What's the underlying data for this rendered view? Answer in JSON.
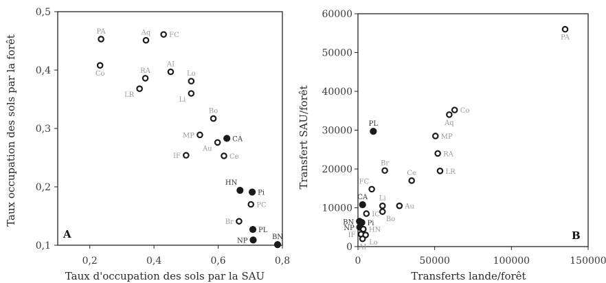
{
  "chart_data": [
    {
      "type": "scatter",
      "panel_label": "A",
      "xlabel": "Taux d'occupation des sols par la SAU",
      "ylabel": "Taux occupation des sols par la forêt",
      "xlim": [
        0.1,
        0.8
      ],
      "ylim": [
        0.1,
        0.5
      ],
      "xticks": [
        "0,2",
        "0,4",
        "0,6",
        "0,8"
      ],
      "yticks": [
        "0,5",
        "0,4",
        "0,3",
        "0,2",
        "0,1"
      ],
      "xtick_values": [
        0.2,
        0.4,
        0.6,
        0.8
      ],
      "ytick_values": [
        0.5,
        0.4,
        0.3,
        0.2,
        0.1
      ],
      "points": [
        {
          "label": "PA",
          "x": 0.235,
          "y": 0.453,
          "filled": false,
          "label_pos": "above"
        },
        {
          "label": "Co",
          "x": 0.232,
          "y": 0.408,
          "filled": false,
          "label_pos": "below"
        },
        {
          "label": "Aq",
          "x": 0.375,
          "y": 0.451,
          "filled": false,
          "label_pos": "above"
        },
        {
          "label": "FC",
          "x": 0.43,
          "y": 0.461,
          "filled": false,
          "label_pos": "right"
        },
        {
          "label": "RA",
          "x": 0.373,
          "y": 0.386,
          "filled": false,
          "label_pos": "above"
        },
        {
          "label": "LR",
          "x": 0.355,
          "y": 0.368,
          "filled": false,
          "label_pos": "left-below"
        },
        {
          "label": "AI",
          "x": 0.452,
          "y": 0.397,
          "filled": false,
          "label_pos": "above"
        },
        {
          "label": "Lo",
          "x": 0.516,
          "y": 0.381,
          "filled": false,
          "label_pos": "above"
        },
        {
          "label": "Li",
          "x": 0.516,
          "y": 0.36,
          "filled": false,
          "label_pos": "left-below"
        },
        {
          "label": "Bo",
          "x": 0.585,
          "y": 0.317,
          "filled": false,
          "label_pos": "above"
        },
        {
          "label": "MP",
          "x": 0.543,
          "y": 0.289,
          "filled": false,
          "label_pos": "left"
        },
        {
          "label": "CA",
          "x": 0.627,
          "y": 0.283,
          "filled": true,
          "label_pos": "right"
        },
        {
          "label": "Au",
          "x": 0.598,
          "y": 0.276,
          "filled": false,
          "label_pos": "left-below"
        },
        {
          "label": "IF",
          "x": 0.5,
          "y": 0.254,
          "filled": false,
          "label_pos": "left"
        },
        {
          "label": "Ce",
          "x": 0.618,
          "y": 0.253,
          "filled": false,
          "label_pos": "right"
        },
        {
          "label": "HN",
          "x": 0.668,
          "y": 0.194,
          "filled": true,
          "label_pos": "above-left"
        },
        {
          "label": "Pi",
          "x": 0.706,
          "y": 0.191,
          "filled": true,
          "label_pos": "right"
        },
        {
          "label": "PC",
          "x": 0.702,
          "y": 0.17,
          "filled": false,
          "label_pos": "right"
        },
        {
          "label": "Br",
          "x": 0.665,
          "y": 0.141,
          "filled": false,
          "label_pos": "left"
        },
        {
          "label": "PL",
          "x": 0.708,
          "y": 0.127,
          "filled": true,
          "label_pos": "right"
        },
        {
          "label": "NP",
          "x": 0.709,
          "y": 0.109,
          "filled": true,
          "label_pos": "left"
        },
        {
          "label": "BN",
          "x": 0.785,
          "y": 0.101,
          "filled": true,
          "label_pos": "above"
        }
      ]
    },
    {
      "type": "scatter",
      "panel_label": "B",
      "xlabel": "Transferts lande/forêt",
      "ylabel": "Transfert SAU/forêt",
      "xlim": [
        0,
        150000
      ],
      "ylim": [
        0,
        60000
      ],
      "xticks": [
        "0",
        "50000",
        "100000",
        "150000"
      ],
      "yticks": [
        "60000",
        "50000",
        "40000",
        "30000",
        "20000",
        "10000",
        "0"
      ],
      "xtick_values": [
        0,
        50000,
        100000,
        150000
      ],
      "ytick_values": [
        60000,
        50000,
        40000,
        30000,
        20000,
        10000,
        0
      ],
      "points": [
        {
          "label": "PA",
          "x": 135000,
          "y": 56000,
          "filled": false,
          "label_pos": "below"
        },
        {
          "label": "Co",
          "x": 63000,
          "y": 35200,
          "filled": false,
          "label_pos": "right"
        },
        {
          "label": "Aq",
          "x": 59500,
          "y": 34000,
          "filled": false,
          "label_pos": "below"
        },
        {
          "label": "MP",
          "x": 50500,
          "y": 28500,
          "filled": false,
          "label_pos": "right"
        },
        {
          "label": "RA",
          "x": 52000,
          "y": 24000,
          "filled": false,
          "label_pos": "right"
        },
        {
          "label": "LR",
          "x": 53500,
          "y": 19500,
          "filled": false,
          "label_pos": "right"
        },
        {
          "label": "PL",
          "x": 10000,
          "y": 29700,
          "filled": true,
          "label_pos": "above"
        },
        {
          "label": "Br",
          "x": 17500,
          "y": 19600,
          "filled": false,
          "label_pos": "above"
        },
        {
          "label": "Ce",
          "x": 35000,
          "y": 17000,
          "filled": false,
          "label_pos": "above"
        },
        {
          "label": "FC",
          "x": 9000,
          "y": 14800,
          "filled": false,
          "label_pos": "above-left"
        },
        {
          "label": "CA",
          "x": 3000,
          "y": 10800,
          "filled": true,
          "label_pos": "above"
        },
        {
          "label": "Li",
          "x": 16000,
          "y": 10500,
          "filled": false,
          "label_pos": "above"
        },
        {
          "label": "Au",
          "x": 27000,
          "y": 10500,
          "filled": false,
          "label_pos": "right"
        },
        {
          "label": "Bo",
          "x": 16000,
          "y": 9000,
          "filled": false,
          "label_pos": "below-right"
        },
        {
          "label": "IC",
          "x": 5500,
          "y": 8500,
          "filled": false,
          "label_pos": "right"
        },
        {
          "label": "BN",
          "x": 1000,
          "y": 6500,
          "filled": true,
          "label_pos": "left"
        },
        {
          "label": "Pi",
          "x": 2500,
          "y": 6200,
          "filled": true,
          "label_pos": "right"
        },
        {
          "label": "NP",
          "x": 1200,
          "y": 5000,
          "filled": true,
          "label_pos": "left"
        },
        {
          "label": "HN",
          "x": 3500,
          "y": 4500,
          "filled": false,
          "label_pos": "right"
        },
        {
          "label": "IF",
          "x": 2000,
          "y": 3200,
          "filled": false,
          "label_pos": "left"
        },
        {
          "label": "Lo",
          "x": 5000,
          "y": 3000,
          "filled": false,
          "label_pos": "below-right"
        },
        {
          "label": "AI",
          "x": 3000,
          "y": 2000,
          "filled": false,
          "label_pos": "below"
        }
      ]
    }
  ],
  "colors": {
    "frame": "#222222",
    "open_marker_stroke": "#1a1a1a",
    "filled_marker": "#1a1a1a",
    "label_open": "#9a9a9a",
    "label_filled": "#333333"
  }
}
